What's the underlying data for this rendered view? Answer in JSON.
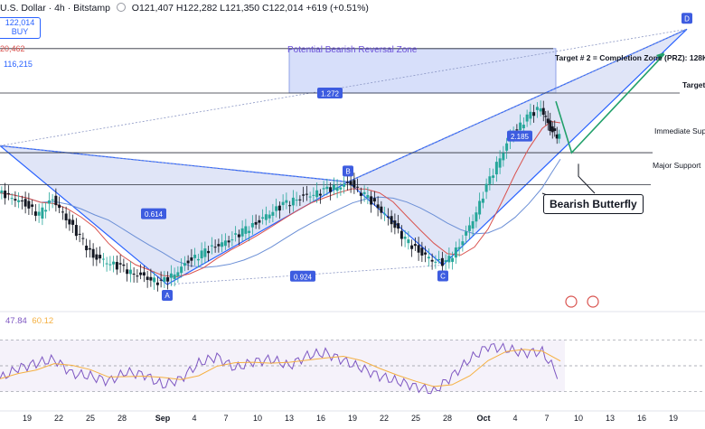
{
  "header": {
    "symbol_prefix": "U.S. Dollar · 4h · Bitstamp",
    "ohlc": "O121,407 H122,282 L121,350 C122,014 +619 (+0.51%)"
  },
  "buy_box": {
    "price": "122,014",
    "label": "BUY"
  },
  "side_values": [
    "20,462",
    "116,215"
  ],
  "rsi_header": {
    "v1": "47.84",
    "v2": "60.12"
  },
  "colors": {
    "candle_up": "#26a69a",
    "candle_down": "#131722",
    "pattern_fill": "#c7d0f0",
    "pattern_line": "#2962ff",
    "ma_blue": "#6b8fd6",
    "ma_red": "#d9534f",
    "rsi_line": "#7e57c2",
    "rsi_ma": "#f5b041",
    "arrow_green": "#22a06b",
    "prz": "#b7c4f5"
  },
  "chart_data": {
    "type": "line",
    "pattern": {
      "name": "Bearish Butterfly",
      "points": [
        {
          "label": "A",
          "x": 37,
          "y": 109.8
        },
        {
          "label": "B",
          "x": 77,
          "y": 117.2
        },
        {
          "label": "C",
          "x": 98,
          "y": 111.2
        },
        {
          "label": "D",
          "x": 152,
          "y": 128.2
        }
      ],
      "ratios": [
        {
          "label": "0.614",
          "x": 34,
          "y": 114.9
        },
        {
          "label": "0.924",
          "x": 67,
          "y": 110.4
        },
        {
          "label": "1.272",
          "x": 73,
          "y": 123.6
        },
        {
          "label": "2.185",
          "x": 115,
          "y": 120.5
        }
      ]
    },
    "levels": [
      {
        "label": "Target # 2 = Completion Zone (PRZ): 128K-",
        "y": 126.8
      },
      {
        "label": "Target",
        "y": 123.6
      },
      {
        "label": "Immediate Sup",
        "y": 119.3
      },
      {
        "label": "Major Support",
        "y": 117.0
      }
    ],
    "prz": {
      "label": "Potential Bearish Reversal Zone",
      "x0": 64,
      "x1": 123,
      "y0": 123.6,
      "y1": 126.8
    },
    "annotations": [
      {
        "text": "Bearish Butterfly"
      }
    ],
    "x_ticks": [
      {
        "label": "19",
        "x": 6
      },
      {
        "label": "22",
        "x": 13
      },
      {
        "label": "25",
        "x": 20
      },
      {
        "label": "28",
        "x": 27
      },
      {
        "label": "Sep",
        "x": 36
      },
      {
        "label": "4",
        "x": 43
      },
      {
        "label": "7",
        "x": 50
      },
      {
        "label": "10",
        "x": 57
      },
      {
        "label": "13",
        "x": 64
      },
      {
        "label": "16",
        "x": 71
      },
      {
        "label": "19",
        "x": 78
      },
      {
        "label": "22",
        "x": 85
      },
      {
        "label": "25",
        "x": 92
      },
      {
        "label": "28",
        "x": 99
      },
      {
        "label": "Oct",
        "x": 107
      },
      {
        "label": "4",
        "x": 114
      },
      {
        "label": "7",
        "x": 121
      },
      {
        "label": "10",
        "x": 128
      },
      {
        "label": "13",
        "x": 135
      },
      {
        "label": "16",
        "x": 142
      },
      {
        "label": "19",
        "x": 149
      }
    ],
    "price_series": {
      "x": [
        0,
        3,
        6,
        9,
        12,
        15,
        18,
        21,
        24,
        27,
        30,
        33,
        36,
        39,
        42,
        45,
        48,
        51,
        54,
        57,
        60,
        63,
        66,
        69,
        72,
        75,
        78,
        81,
        84,
        87,
        90,
        93,
        96,
        99,
        102,
        105,
        108,
        111,
        114,
        117,
        120,
        122,
        124
      ],
      "y": [
        116.4,
        116.1,
        115.6,
        114.8,
        116.0,
        114.6,
        113.2,
        111.8,
        111.5,
        111.0,
        110.6,
        110.3,
        109.9,
        110.6,
        111.5,
        112.0,
        112.6,
        113.0,
        113.6,
        114.2,
        115.0,
        115.5,
        116.0,
        116.3,
        116.5,
        116.9,
        117.1,
        116.2,
        115.4,
        114.3,
        113.0,
        112.2,
        111.6,
        111.3,
        112.6,
        114.5,
        116.8,
        119.0,
        120.8,
        121.8,
        122.6,
        121.0,
        120.4
      ]
    },
    "rsi_series": {
      "x": [
        0,
        4,
        8,
        12,
        16,
        20,
        24,
        28,
        32,
        36,
        40,
        44,
        48,
        52,
        56,
        60,
        64,
        68,
        72,
        76,
        80,
        84,
        88,
        92,
        96,
        100,
        104,
        108,
        112,
        116,
        120,
        124
      ],
      "y": [
        40,
        48,
        52,
        55,
        44,
        42,
        38,
        45,
        43,
        35,
        40,
        52,
        57,
        48,
        53,
        55,
        50,
        58,
        60,
        54,
        48,
        42,
        38,
        34,
        30,
        42,
        55,
        65,
        63,
        60,
        61,
        40
      ]
    },
    "xlim": [
      0,
      152
    ],
    "ylim": [
      108.5,
      129.0
    ],
    "rsi_ylim": [
      20,
      80
    ]
  }
}
